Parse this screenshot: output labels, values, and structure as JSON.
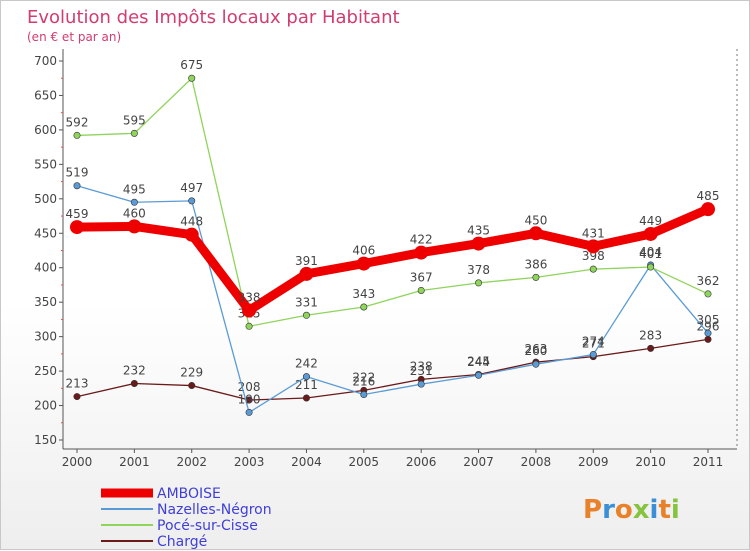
{
  "chart_data": {
    "type": "line",
    "title": "Evolution des Impôts locaux par Habitant",
    "subtitle": "(en € et par an)",
    "brand": "Proxiti",
    "x": [
      "2000",
      "2001",
      "2002",
      "2003",
      "2004",
      "2005",
      "2006",
      "2007",
      "2008",
      "2009",
      "2010",
      "2011"
    ],
    "ylim": [
      150,
      700
    ],
    "yticks": [
      150,
      200,
      250,
      300,
      350,
      400,
      450,
      500,
      550,
      600,
      650,
      700
    ],
    "grid": false,
    "legend_position": "bottom-left",
    "series": [
      {
        "name": "Chargé",
        "color": "#6b1a1a",
        "values": [
          213,
          232,
          229,
          208,
          211,
          222,
          238,
          245,
          263,
          271,
          283,
          296
        ]
      },
      {
        "name": "Nazelles-Négron",
        "color": "#5b9bd5",
        "values": [
          519,
          495,
          497,
          190,
          242,
          216,
          231,
          244,
          260,
          274,
          404,
          305
        ]
      },
      {
        "name": "Pocé-sur-Cisse",
        "color": "#8fd45b",
        "values": [
          592,
          595,
          675,
          315,
          331,
          343,
          367,
          378,
          386,
          398,
          401,
          362
        ]
      },
      {
        "name": "AMBOISE",
        "color": "#ee0000",
        "values": [
          459,
          460,
          448,
          338,
          391,
          406,
          422,
          435,
          450,
          431,
          449,
          485
        ]
      }
    ],
    "legend": [
      "AMBOISE",
      "Nazelles-Négron",
      "Pocé-sur-Cisse",
      "Chargé"
    ]
  }
}
